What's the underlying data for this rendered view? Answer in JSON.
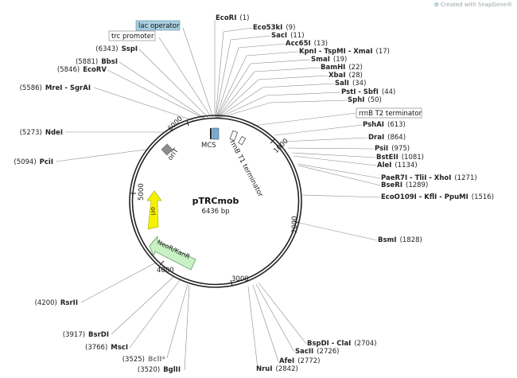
{
  "watermark": "Created with SnapGene®",
  "plasmid": {
    "name": "pTRCmob",
    "size": "6436 bp"
  },
  "ticks": [
    "1000",
    "2000",
    "3000",
    "4000",
    "5000",
    "6000"
  ],
  "features": {
    "lac_operator": "lac operator",
    "trc_promoter": "trc promoter",
    "rrnb_t2": "rrnB T2 terminator",
    "rrnb_t1": "rrnB T1 terminator",
    "mcs": "MCS",
    "orit": "oriT",
    "ori": "ori",
    "neor": "NeoR/KanR"
  },
  "sites": [
    {
      "name": "EcoRI",
      "pos": "(1)"
    },
    {
      "name": "Eco53kI",
      "pos": "(9)"
    },
    {
      "name": "SacI",
      "pos": "(11)"
    },
    {
      "name": "Acc65I",
      "pos": "(13)"
    },
    {
      "name": "KpnI - TspMI - XmaI",
      "pos": "(17)"
    },
    {
      "name": "SmaI",
      "pos": "(19)"
    },
    {
      "name": "BamHI",
      "pos": "(22)"
    },
    {
      "name": "XbaI",
      "pos": "(28)"
    },
    {
      "name": "SalI",
      "pos": "(34)"
    },
    {
      "name": "PstI - SbfI",
      "pos": "(44)"
    },
    {
      "name": "SphI",
      "pos": "(50)"
    },
    {
      "name": "PshAI",
      "pos": "(613)"
    },
    {
      "name": "DraI",
      "pos": "(864)"
    },
    {
      "name": "PsiI",
      "pos": "(975)"
    },
    {
      "name": "BstEII",
      "pos": "(1081)"
    },
    {
      "name": "AleI",
      "pos": "(1134)"
    },
    {
      "name": "PaeR7I - TliI - XhoI",
      "pos": "(1271)"
    },
    {
      "name": "BseRI",
      "pos": "(1289)"
    },
    {
      "name": "EcoO109I - KflI - PpuMI",
      "pos": "(1516)"
    },
    {
      "name": "BsmI",
      "pos": "(1828)"
    },
    {
      "name": "BspDI - ClaI",
      "pos": "(2704)"
    },
    {
      "name": "SacII",
      "pos": "(2726)"
    },
    {
      "name": "AfeI",
      "pos": "(2772)"
    },
    {
      "name": "NruI",
      "pos": "(2842)"
    },
    {
      "name": "BglII",
      "pos": "(3520)"
    },
    {
      "name": "BclI*",
      "pos": "(3525)"
    },
    {
      "name": "MscI",
      "pos": "(3766)"
    },
    {
      "name": "BsrDI",
      "pos": "(3917)"
    },
    {
      "name": "RsrII",
      "pos": "(4200)"
    },
    {
      "name": "PciI",
      "pos": "(5094)"
    },
    {
      "name": "NdeI",
      "pos": "(5273)"
    },
    {
      "name": "MreI - SgrAI",
      "pos": "(5586)"
    },
    {
      "name": "EcoRV",
      "pos": "(5846)"
    },
    {
      "name": "BbsI",
      "pos": "(5881)"
    },
    {
      "name": "SspI",
      "pos": "(6343)"
    }
  ],
  "colors": {
    "backbone": "#222222",
    "ori": "#f5f200",
    "neor": "#c8f2c4",
    "lac_operator": "#a8cfe0",
    "orit": "#8c8c8c",
    "mcs_box": "#79a9d6",
    "leader": "#888888",
    "greyed_site": "#888888"
  }
}
